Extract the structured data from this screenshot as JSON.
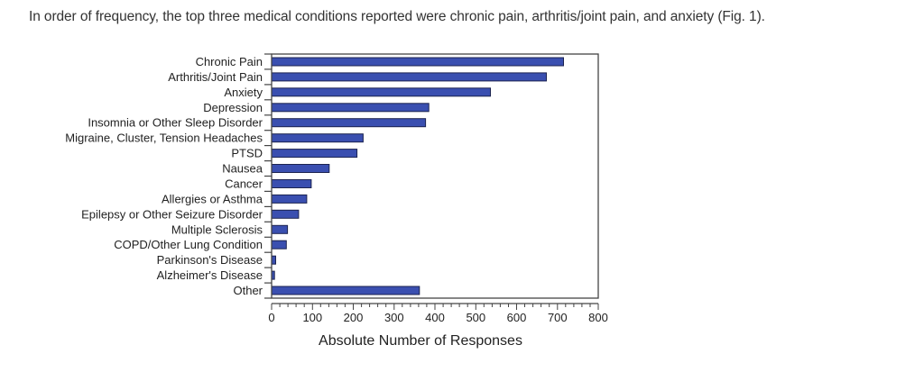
{
  "caption": "In order of frequency, the top three medical conditions reported were chronic pain, arthritis/joint pain, and anxiety (Fig. 1).",
  "colors": {
    "bar": "#3a4fb0",
    "bar_stroke": "#1c2350",
    "axis": "#444444"
  },
  "chart_data": {
    "type": "bar",
    "orientation": "horizontal",
    "title": "",
    "categories": [
      "Chronic Pain",
      "Arthritis/Joint Pain",
      "Anxiety",
      "Depression",
      "Insomnia or Other Sleep Disorder",
      "Migraine, Cluster, Tension Headaches",
      "PTSD",
      "Nausea",
      "Cancer",
      "Allergies or Asthma",
      "Epilepsy or Other Seizure Disorder",
      "Multiple Sclerosis",
      "COPD/Other Lung Condition",
      "Parkinson's Disease",
      "Alzheimer's Disease",
      "Other"
    ],
    "values": [
      715,
      673,
      536,
      385,
      377,
      224,
      209,
      141,
      97,
      86,
      66,
      39,
      36,
      10,
      7,
      362
    ],
    "xlabel": "Absolute Number of Responses",
    "ylabel": "",
    "xlim": [
      0,
      800
    ],
    "xticks": [
      "0",
      "100",
      "200",
      "300",
      "400",
      "500",
      "600",
      "700",
      "800"
    ],
    "minor_tick_step": 20,
    "grid": false
  }
}
